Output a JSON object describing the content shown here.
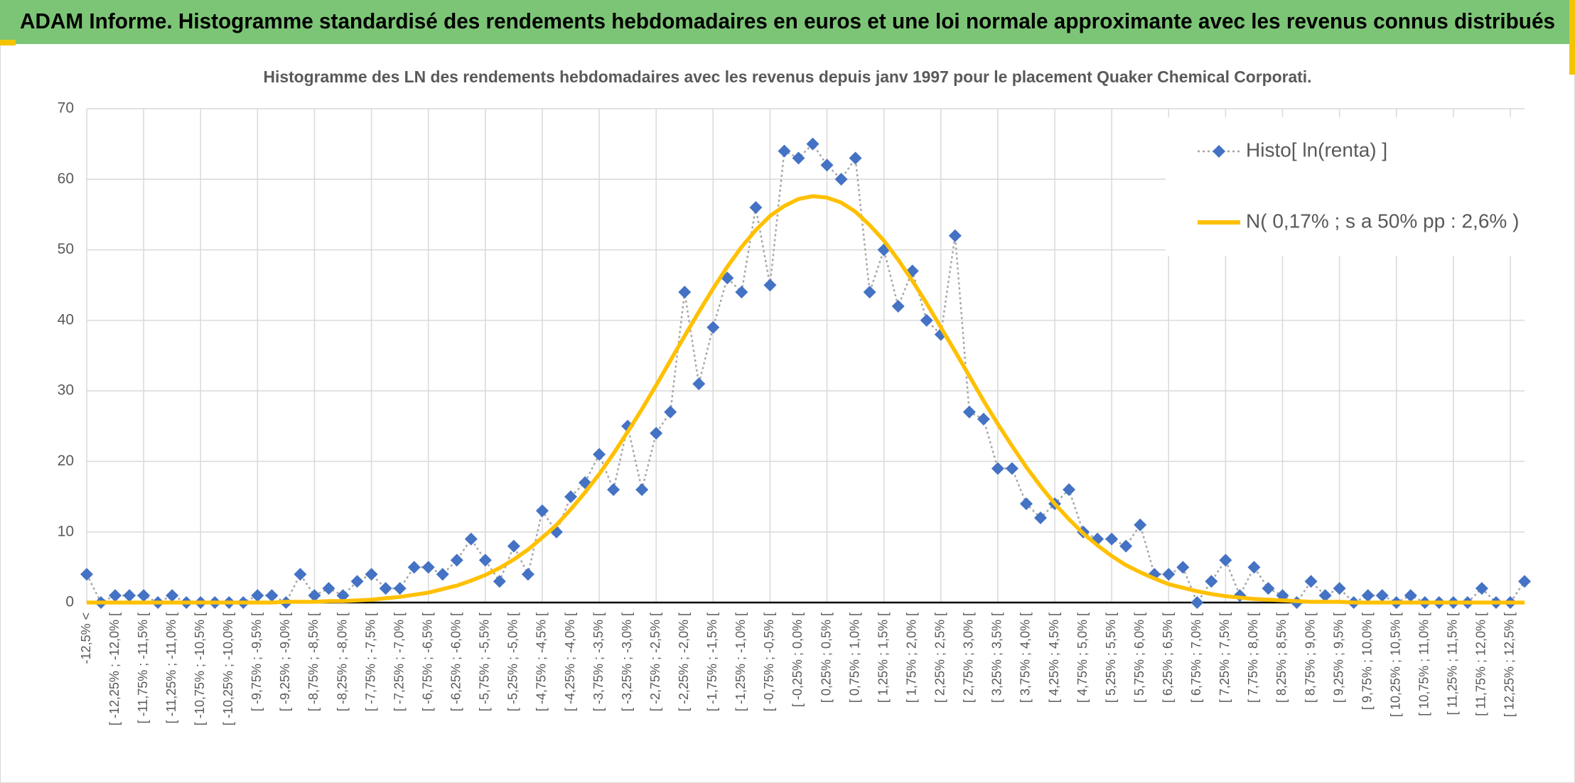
{
  "header": {
    "title": "ADAM Informe. Histogramme standardisé des rendements hebdomadaires en euros et une loi normale approximante avec les revenus connus distribués"
  },
  "chart_data": {
    "type": "line",
    "title": "Histogramme des LN des rendements hebdomadaires avec les revenus depuis janv 1997 pour le placement Quaker Chemical Corporati.",
    "categories": [
      "-12,5% <",
      null,
      "[ -12,25% ; -12,0% [",
      null,
      "[ -11,75% ; -11,5% [",
      null,
      "[ -11,25% ; -11,0% [",
      null,
      "[ -10,75% ; -10,5% [",
      null,
      "[ -10,25% ; -10,0% [",
      null,
      "[ -9,75% ; -9,5% [",
      null,
      "[ -9,25% ; -9,0% [",
      null,
      "[ -8,75% ; -8,5% [",
      null,
      "[ -8,25% ; -8,0% [",
      null,
      "[ -7,75% ; -7,5% [",
      null,
      "[ -7,25% ; -7,0% [",
      null,
      "[ -6,75% ; -6,5% [",
      null,
      "[ -6,25% ; -6,0% [",
      null,
      "[ -5,75% ; -5,5% [",
      null,
      "[ -5,25% ; -5,0% [",
      null,
      "[ -4,75% ; -4,5% [",
      null,
      "[ -4,25% ; -4,0% [",
      null,
      "[ -3,75% ; -3,5% [",
      null,
      "[ -3,25% ; -3,0% [",
      null,
      "[ -2,75% ; -2,5% [",
      null,
      "[ -2,25% ; -2,0% [",
      null,
      "[ -1,75% ; -1,5% [",
      null,
      "[ -1,25% ; -1,0% [",
      null,
      "[ -0,75% ; -0,5% [",
      null,
      "[ -0,25% ; 0,0% [",
      null,
      "[ 0,25% ; 0,5% [",
      null,
      "[ 0,75% ; 1,0% [",
      null,
      "[ 1,25% ; 1,5% [",
      null,
      "[ 1,75% ; 2,0% [",
      null,
      "[ 2,25% ; 2,5% [",
      null,
      "[ 2,75% ; 3,0% [",
      null,
      "[ 3,25% ; 3,5% [",
      null,
      "[ 3,75% ; 4,0% [",
      null,
      "[ 4,25% ; 4,5% [",
      null,
      "[ 4,75% ; 5,0% [",
      null,
      "[ 5,25% ; 5,5% [",
      null,
      "[ 5,75% ; 6,0% [",
      null,
      "[ 6,25% ; 6,5% [",
      null,
      "[ 6,75% ; 7,0% [",
      null,
      "[ 7,25% ; 7,5% [",
      null,
      "[ 7,75% ; 8,0% [",
      null,
      "[ 8,25% ; 8,5% [",
      null,
      "[ 8,75% ; 9,0% [",
      null,
      "[ 9,25% ; 9,5% [",
      null,
      "[ 9,75% ; 10,0% [",
      null,
      "[ 10,25% ; 10,5% [",
      null,
      "[ 10,75% ; 11,0% [",
      null,
      "[ 11,25% ; 11,5% [",
      null,
      "[ 11,75% ; 12,0% [",
      null,
      "[ 12,25% ; 12,5% [",
      null
    ],
    "series": [
      {
        "name": "Histo[ ln(renta) ]",
        "color": "#4472c4",
        "line_color": "#a6a6a6",
        "marker": "diamond",
        "values": [
          4,
          0,
          1,
          1,
          1,
          0,
          1,
          0,
          0,
          0,
          0,
          0,
          1,
          1,
          0,
          4,
          1,
          2,
          1,
          3,
          4,
          2,
          2,
          5,
          5,
          4,
          6,
          9,
          6,
          3,
          8,
          4,
          13,
          10,
          15,
          17,
          21,
          16,
          25,
          16,
          24,
          27,
          44,
          31,
          39,
          46,
          44,
          56,
          45,
          64,
          63,
          65,
          62,
          60,
          63,
          44,
          50,
          42,
          47,
          40,
          38,
          52,
          27,
          26,
          19,
          19,
          14,
          12,
          14,
          16,
          10,
          9,
          9,
          8,
          11,
          4,
          4,
          5,
          0,
          3,
          6,
          1,
          5,
          2,
          1,
          0,
          3,
          1,
          2,
          0,
          1,
          1,
          0,
          1,
          0,
          0,
          0,
          0,
          2,
          0,
          0,
          3
        ]
      },
      {
        "name": "N( 0,17% ; s a 50% pp : 2,6% )",
        "color": "#ffc000",
        "values": [
          0,
          0,
          0,
          0,
          0,
          0,
          0,
          0,
          0,
          0,
          0,
          0,
          0,
          0,
          0.1,
          0.1,
          0.1,
          0.2,
          0.2,
          0.3,
          0.4,
          0.6,
          0.8,
          1.1,
          1.4,
          1.9,
          2.4,
          3.1,
          3.9,
          4.9,
          6.1,
          7.5,
          9.2,
          11.0,
          13.2,
          15.6,
          18.2,
          21.1,
          24.2,
          27.4,
          30.8,
          34.3,
          37.8,
          41.2,
          44.5,
          47.6,
          50.4,
          52.8,
          54.8,
          56.2,
          57.2,
          57.6,
          57.4,
          56.7,
          55.4,
          53.5,
          51.3,
          48.6,
          45.6,
          42.4,
          39.0,
          35.6,
          32.1,
          28.6,
          25.3,
          22.2,
          19.2,
          16.5,
          14.0,
          11.8,
          9.8,
          8.1,
          6.6,
          5.3,
          4.3,
          3.4,
          2.6,
          2.1,
          1.6,
          1.2,
          0.9,
          0.7,
          0.5,
          0.4,
          0.3,
          0.2,
          0.1,
          0.1,
          0.1,
          0,
          0,
          0,
          0,
          0,
          0,
          0,
          0,
          0,
          0,
          0,
          0,
          0
        ]
      }
    ],
    "ylim": [
      0,
      70
    ],
    "yticks": [
      0,
      10,
      20,
      30,
      40,
      50,
      60,
      70
    ],
    "grid": true,
    "legend": "upper right"
  }
}
